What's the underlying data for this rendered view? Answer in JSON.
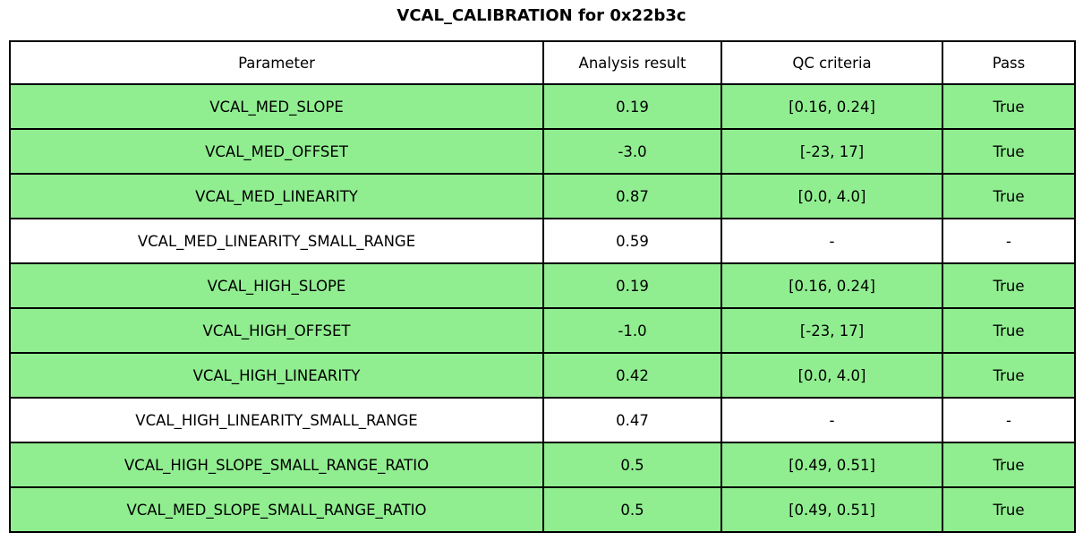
{
  "title": "VCAL_CALIBRATION for 0x22b3c",
  "colors": {
    "pass_row_bg": "#90ee90",
    "neutral_row_bg": "#ffffff",
    "border": "#000000",
    "text": "#000000"
  },
  "chart_data": {
    "type": "table",
    "title": "VCAL_CALIBRATION for 0x22b3c",
    "columns": [
      "Parameter",
      "Analysis result",
      "QC criteria",
      "Pass"
    ],
    "rows": [
      {
        "parameter": "VCAL_MED_SLOPE",
        "analysis_result": "0.19",
        "qc_criteria": "[0.16, 0.24]",
        "pass": "True",
        "highlighted": true
      },
      {
        "parameter": "VCAL_MED_OFFSET",
        "analysis_result": "-3.0",
        "qc_criteria": "[-23, 17]",
        "pass": "True",
        "highlighted": true
      },
      {
        "parameter": "VCAL_MED_LINEARITY",
        "analysis_result": "0.87",
        "qc_criteria": "[0.0, 4.0]",
        "pass": "True",
        "highlighted": true
      },
      {
        "parameter": "VCAL_MED_LINEARITY_SMALL_RANGE",
        "analysis_result": "0.59",
        "qc_criteria": "-",
        "pass": "-",
        "highlighted": false
      },
      {
        "parameter": "VCAL_HIGH_SLOPE",
        "analysis_result": "0.19",
        "qc_criteria": "[0.16, 0.24]",
        "pass": "True",
        "highlighted": true
      },
      {
        "parameter": "VCAL_HIGH_OFFSET",
        "analysis_result": "-1.0",
        "qc_criteria": "[-23, 17]",
        "pass": "True",
        "highlighted": true
      },
      {
        "parameter": "VCAL_HIGH_LINEARITY",
        "analysis_result": "0.42",
        "qc_criteria": "[0.0, 4.0]",
        "pass": "True",
        "highlighted": true
      },
      {
        "parameter": "VCAL_HIGH_LINEARITY_SMALL_RANGE",
        "analysis_result": "0.47",
        "qc_criteria": "-",
        "pass": "-",
        "highlighted": false
      },
      {
        "parameter": "VCAL_HIGH_SLOPE_SMALL_RANGE_RATIO",
        "analysis_result": "0.5",
        "qc_criteria": "[0.49, 0.51]",
        "pass": "True",
        "highlighted": true
      },
      {
        "parameter": "VCAL_MED_SLOPE_SMALL_RANGE_RATIO",
        "analysis_result": "0.5",
        "qc_criteria": "[0.49, 0.51]",
        "pass": "True",
        "highlighted": true
      }
    ]
  }
}
